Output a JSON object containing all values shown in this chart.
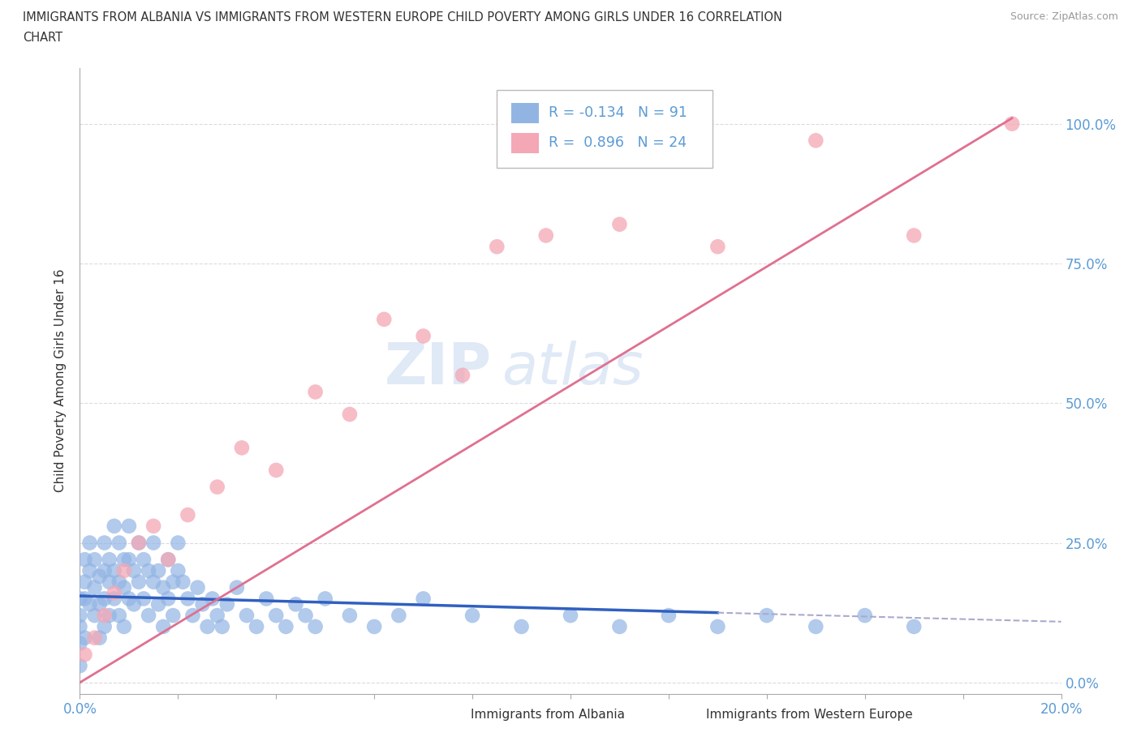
{
  "title_line1": "IMMIGRANTS FROM ALBANIA VS IMMIGRANTS FROM WESTERN EUROPE CHILD POVERTY AMONG GIRLS UNDER 16 CORRELATION",
  "title_line2": "CHART",
  "source": "Source: ZipAtlas.com",
  "ylabel": "Child Poverty Among Girls Under 16",
  "xlim": [
    0,
    0.2
  ],
  "ylim": [
    -0.02,
    1.1
  ],
  "ytick_labels": [
    "0.0%",
    "25.0%",
    "50.0%",
    "75.0%",
    "100.0%"
  ],
  "ytick_vals": [
    0.0,
    0.25,
    0.5,
    0.75,
    1.0
  ],
  "albania_color": "#92b4e3",
  "western_color": "#f4a7b5",
  "albania_line_color": "#3060c0",
  "western_line_color": "#e07090",
  "albania_dashed_color": "#aaaacc",
  "albania_R": -0.134,
  "albania_N": 91,
  "western_R": 0.896,
  "western_N": 24,
  "legend_label_albania": "Immigrants from Albania",
  "legend_label_western": "Immigrants from Western Europe",
  "watermark_zip": "ZIP",
  "watermark_atlas": "atlas",
  "background_color": "#ffffff",
  "grid_color": "#cccccc",
  "albania_x": [
    0.0,
    0.0,
    0.0,
    0.0,
    0.0,
    0.001,
    0.001,
    0.001,
    0.001,
    0.002,
    0.002,
    0.002,
    0.003,
    0.003,
    0.003,
    0.004,
    0.004,
    0.004,
    0.005,
    0.005,
    0.005,
    0.005,
    0.006,
    0.006,
    0.006,
    0.007,
    0.007,
    0.007,
    0.008,
    0.008,
    0.008,
    0.009,
    0.009,
    0.009,
    0.01,
    0.01,
    0.01,
    0.011,
    0.011,
    0.012,
    0.012,
    0.013,
    0.013,
    0.014,
    0.014,
    0.015,
    0.015,
    0.016,
    0.016,
    0.017,
    0.017,
    0.018,
    0.018,
    0.019,
    0.019,
    0.02,
    0.02,
    0.021,
    0.022,
    0.023,
    0.024,
    0.025,
    0.026,
    0.027,
    0.028,
    0.029,
    0.03,
    0.032,
    0.034,
    0.036,
    0.038,
    0.04,
    0.042,
    0.044,
    0.046,
    0.048,
    0.05,
    0.055,
    0.06,
    0.065,
    0.07,
    0.08,
    0.09,
    0.1,
    0.11,
    0.12,
    0.13,
    0.14,
    0.15,
    0.16,
    0.17
  ],
  "albania_y": [
    0.15,
    0.12,
    0.1,
    0.07,
    0.03,
    0.18,
    0.15,
    0.22,
    0.08,
    0.2,
    0.14,
    0.25,
    0.17,
    0.12,
    0.22,
    0.19,
    0.14,
    0.08,
    0.25,
    0.2,
    0.15,
    0.1,
    0.22,
    0.18,
    0.12,
    0.28,
    0.2,
    0.15,
    0.25,
    0.18,
    0.12,
    0.22,
    0.17,
    0.1,
    0.28,
    0.22,
    0.15,
    0.2,
    0.14,
    0.25,
    0.18,
    0.22,
    0.15,
    0.2,
    0.12,
    0.18,
    0.25,
    0.2,
    0.14,
    0.17,
    0.1,
    0.22,
    0.15,
    0.18,
    0.12,
    0.2,
    0.25,
    0.18,
    0.15,
    0.12,
    0.17,
    0.14,
    0.1,
    0.15,
    0.12,
    0.1,
    0.14,
    0.17,
    0.12,
    0.1,
    0.15,
    0.12,
    0.1,
    0.14,
    0.12,
    0.1,
    0.15,
    0.12,
    0.1,
    0.12,
    0.15,
    0.12,
    0.1,
    0.12,
    0.1,
    0.12,
    0.1,
    0.12,
    0.1,
    0.12,
    0.1
  ],
  "western_x": [
    0.001,
    0.003,
    0.005,
    0.007,
    0.009,
    0.012,
    0.015,
    0.018,
    0.022,
    0.028,
    0.033,
    0.04,
    0.048,
    0.055,
    0.062,
    0.07,
    0.078,
    0.085,
    0.095,
    0.11,
    0.13,
    0.15,
    0.17,
    0.19
  ],
  "western_y": [
    0.05,
    0.08,
    0.12,
    0.16,
    0.2,
    0.25,
    0.28,
    0.22,
    0.3,
    0.35,
    0.42,
    0.38,
    0.52,
    0.48,
    0.65,
    0.62,
    0.55,
    0.78,
    0.8,
    0.82,
    0.78,
    0.97,
    0.8,
    1.0
  ]
}
